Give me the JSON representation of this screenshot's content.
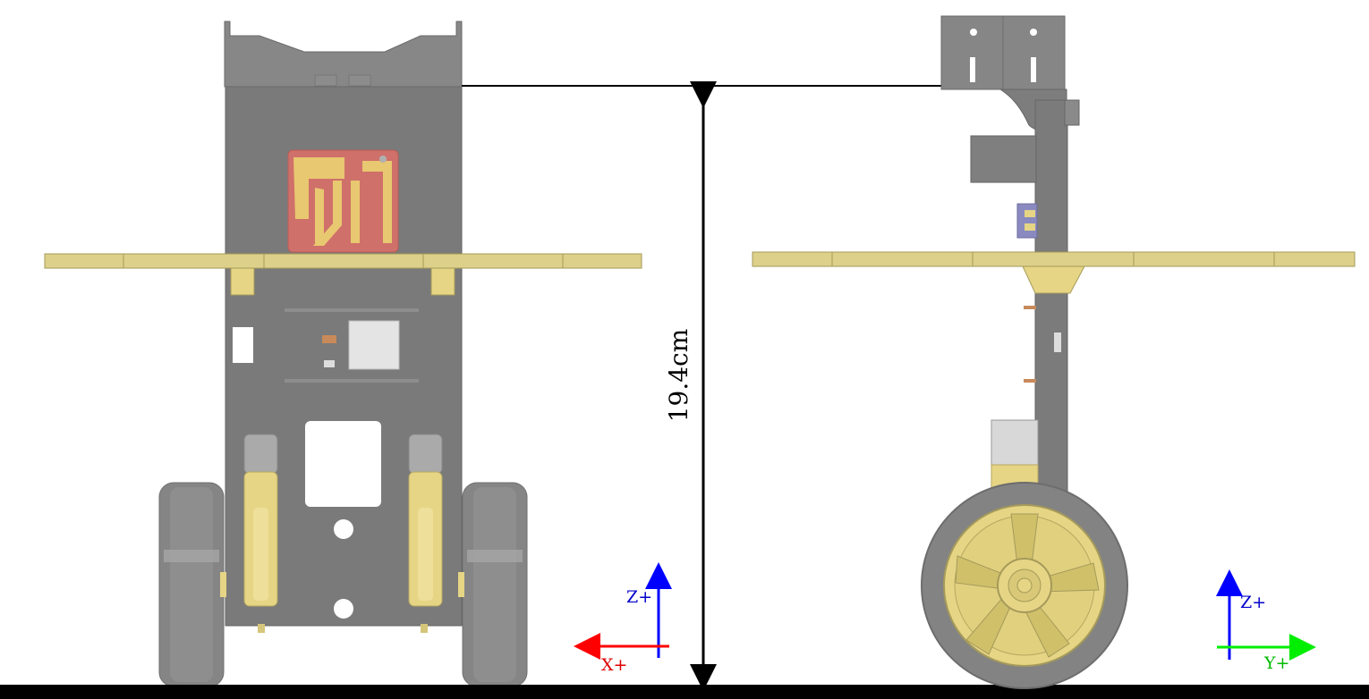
{
  "dimension": {
    "height_label": "19.4cm"
  },
  "front_view": {
    "axes": {
      "z_label": "Z+",
      "x_label": "X+"
    }
  },
  "side_view": {
    "axes": {
      "z_label": "Z+",
      "y_label": "Y+"
    }
  },
  "colors": {
    "body_gray": "#7f7f7f",
    "body_dark": "#6b6b6b",
    "tire_gray": "#858585",
    "plate_yellow": "#ddd08a",
    "motor_yellow": "#e6d585",
    "pcb_red": "#d0706a",
    "pcb_trace": "#e8c870",
    "axis_red": "#ff0000",
    "axis_green": "#00ee00",
    "axis_blue": "#0000ff",
    "label_blue": "#0000cc",
    "label_red": "#dd0000",
    "label_green": "#00bb00"
  }
}
